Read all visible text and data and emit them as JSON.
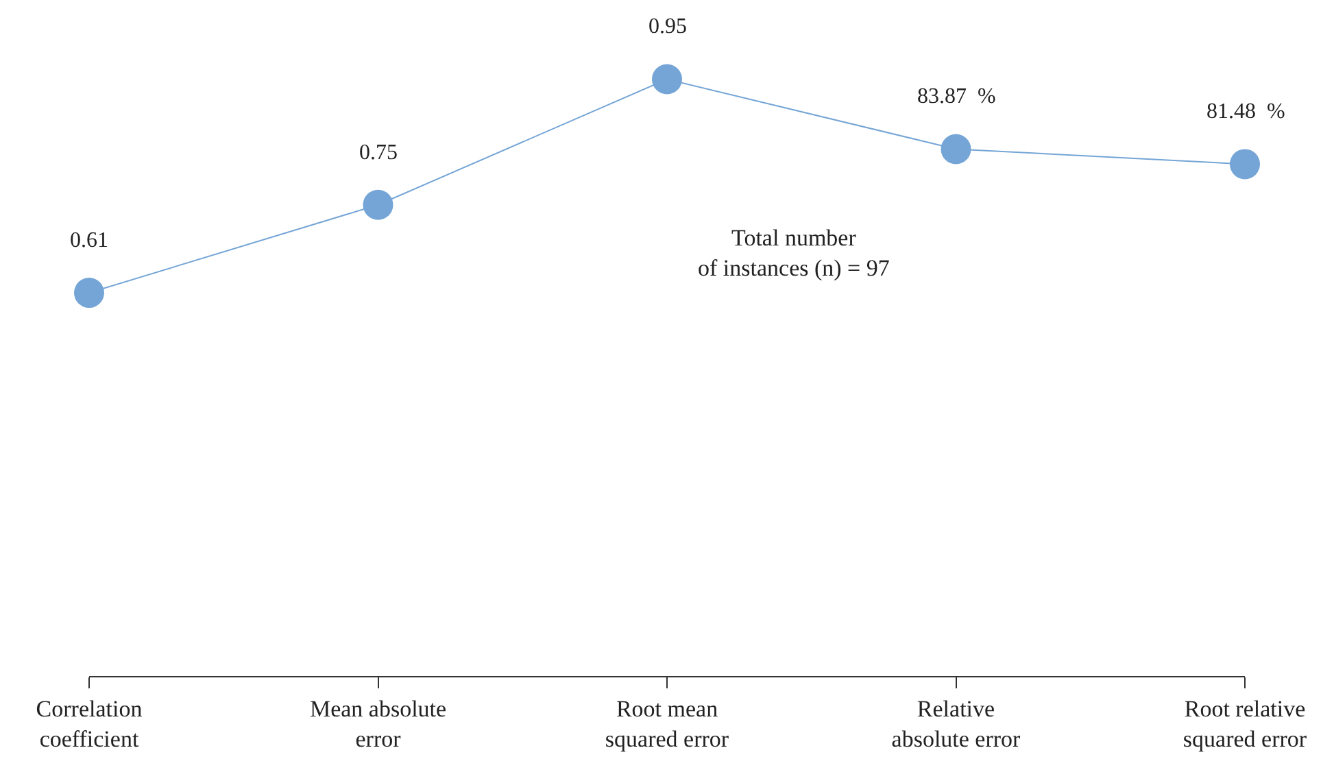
{
  "chart_data": {
    "type": "line",
    "categories": [
      "Correlation\ncoefficient",
      "Mean absolute\nerror",
      "Root mean\nsquared error",
      "Relative\nabsolute error",
      "Root relative\nsquared error"
    ],
    "values": [
      0.61,
      0.75,
      0.95,
      0.8387,
      0.8148
    ],
    "value_labels": [
      "0.61",
      "0.75",
      "0.95",
      "83.87  %",
      "81.48  %"
    ],
    "color": "#74a5d6",
    "marker": "circle",
    "line_style": "solid",
    "legend": false,
    "tick_labels": "x",
    "annotations": [
      "Total number\nof instances (n) = 97"
    ]
  }
}
